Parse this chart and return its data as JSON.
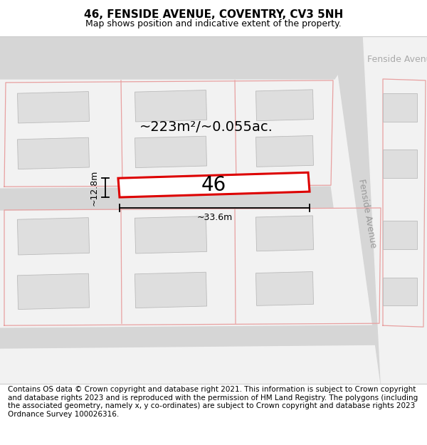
{
  "title": "46, FENSIDE AVENUE, COVENTRY, CV3 5NH",
  "subtitle": "Map shows position and indicative extent of the property.",
  "footer": "Contains OS data © Crown copyright and database right 2021. This information is subject to Crown copyright and database rights 2023 and is reproduced with the permission of HM Land Registry. The polygons (including the associated geometry, namely x, y co-ordinates) are subject to Crown copyright and database rights 2023 Ordnance Survey 100026316.",
  "map_bg": "#f2f2f2",
  "road_color": "#d6d6d6",
  "building_fill": "#dedede",
  "building_edge": "#bbbbbb",
  "plot_line_color": "#dd0000",
  "plot_fill": "#ffffff",
  "dim_color": "#111111",
  "street_label_right": "Fenside Avenue",
  "street_label_top": "Fenside Avenue",
  "area_label": "~223m²/~0.055ac.",
  "width_label": "~33.6m",
  "height_label": "~12.8m",
  "plot_number": "46",
  "title_fontsize": 11,
  "subtitle_fontsize": 9,
  "footer_fontsize": 7.5,
  "pink": "#e8a0a0",
  "white": "#ffffff"
}
